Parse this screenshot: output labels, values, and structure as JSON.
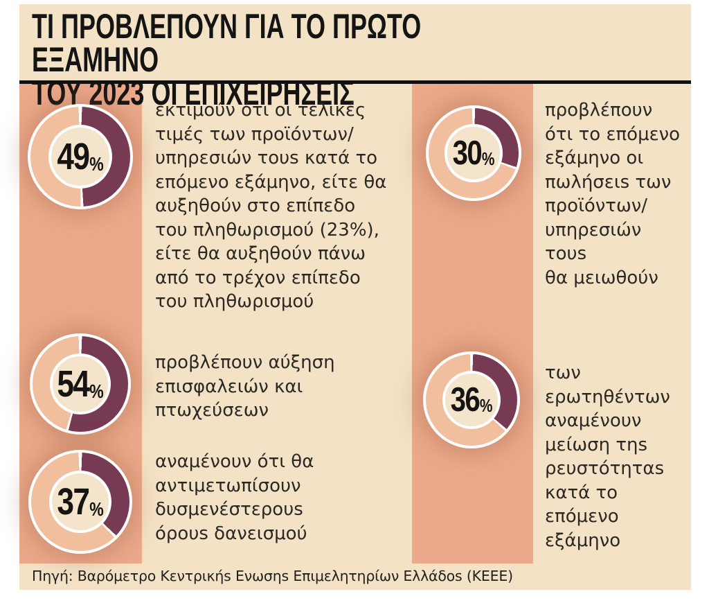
{
  "title": {
    "text": "ΤΙ ΠΡΟΒΛΕΠΟΥΝ ΓΙΑ ΤΟ ΠΡΩΤΟ ΕΞΑΜΗΝΟ\nΤΟΥ 2023 ΟΙ ΕΠΙΧΕΙΡΗΣΕΙΣ"
  },
  "source": {
    "text": "Πηγή: Βαρόμετρο Κεντρικήs Ενωσηs Επιμελητηρίων Ελλάδοs (ΚΕΕΕ)"
  },
  "colors": {
    "background": "#ffffff",
    "panel": "#f4e2c6",
    "stripe": "#ecaa8b",
    "slice_dark": "#763a52",
    "slice_light": "#f2bf9e",
    "hole": "#f3e4cb",
    "text": "#2b2823",
    "title": "#141414"
  },
  "chart_data": {
    "type": "pie",
    "subtype": "donut-infographic",
    "title": "ΤΙ ΠΡΟΒΛΕΠΟΥΝ ΓΙΑ ΤΟ ΠΡΩΤΟ ΕΞΑΜΗΝΟ ΤΟΥ 2023 ΟΙ ΕΠΙΧΕΙΡΗΣΕΙΣ",
    "source": "Πηγή: Βαρόμετρο Κεντρικήs Ενωσηs Επιμελητηρίων Ελλάδοs (ΚΕΕΕ)",
    "legend": "none",
    "donuts": [
      {
        "id": "price-increase",
        "value": 49,
        "display": "49",
        "unit": "%",
        "column": "left",
        "row": 1,
        "description": "εκτιμούν ότι οι τελικές\nτιμές των προϊόντων/\nυπηρεσιών τουs κατά το\nεπόμενο εξάμηνο, είτε θα\nαυξηθούν στο επίπεδο\nτου πληθωρισμού (23%),\nείτε θα αυξηθούν πάνω\nαπό το τρέχον επίπεδο\nτου πληθωρισμού"
      },
      {
        "id": "sales-decrease",
        "value": 30,
        "display": "30",
        "unit": "%",
        "column": "right",
        "row": 1,
        "description": "προβλέπουν\nότι το επόμενο\nεξάμηνο οι\nπωλήσειs των\nπροϊόντων/\nυπηρεσιών\nτουs\nθα μειωθούν"
      },
      {
        "id": "defaults-bankruptcies-increase",
        "value": 54,
        "display": "54",
        "unit": "%",
        "column": "left",
        "row": 2,
        "description": "προβλέπουν αύξηση\nεπισφαλειών και\nπτωχεύσεων"
      },
      {
        "id": "liquidity-decrease",
        "value": 36,
        "display": "36",
        "unit": "%",
        "column": "right",
        "row": 2,
        "description": "των\nερωτηθέντων\nαναμένουν\nμείωση τηs\nρευστότηταs\nκατά το\nεπόμενο\nεξάμηνο"
      },
      {
        "id": "worse-loan-terms",
        "value": 37,
        "display": "37",
        "unit": "%",
        "column": "left",
        "row": 3,
        "description": "αναμένουν ότι θα\nαντιμετωπίσουν\nδυσμενέστερουs\nόρουs δανεισμού"
      }
    ]
  }
}
